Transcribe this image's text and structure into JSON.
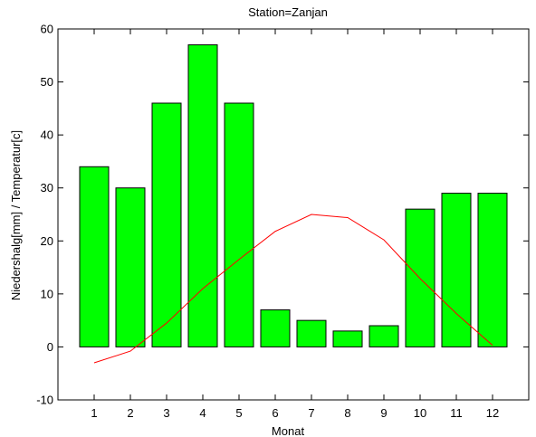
{
  "chart_data": {
    "type": "bar",
    "title": "Station=Zanjan",
    "xlabel": "Monat",
    "ylabel": "Niedershalg[mm] / Temperatur[c]",
    "xlim": [
      0,
      13
    ],
    "ylim": [
      -10,
      60
    ],
    "x_ticks": [
      1,
      2,
      3,
      4,
      5,
      6,
      7,
      8,
      9,
      10,
      11,
      12
    ],
    "y_ticks": [
      -10,
      0,
      10,
      20,
      30,
      40,
      50,
      60
    ],
    "grid": false,
    "categories": [
      "1",
      "2",
      "3",
      "4",
      "5",
      "6",
      "7",
      "8",
      "9",
      "10",
      "11",
      "12"
    ],
    "series": [
      {
        "type": "bar",
        "color": "#00ff00",
        "values": [
          34,
          30,
          46,
          57,
          46,
          7,
          5,
          3,
          4,
          26,
          29,
          29
        ]
      },
      {
        "type": "line",
        "color": "#ff0000",
        "values": [
          -3,
          -0.8,
          4.5,
          11,
          16.5,
          21.8,
          25,
          24.4,
          20.2,
          12.9,
          6.3,
          0.3
        ]
      }
    ]
  }
}
